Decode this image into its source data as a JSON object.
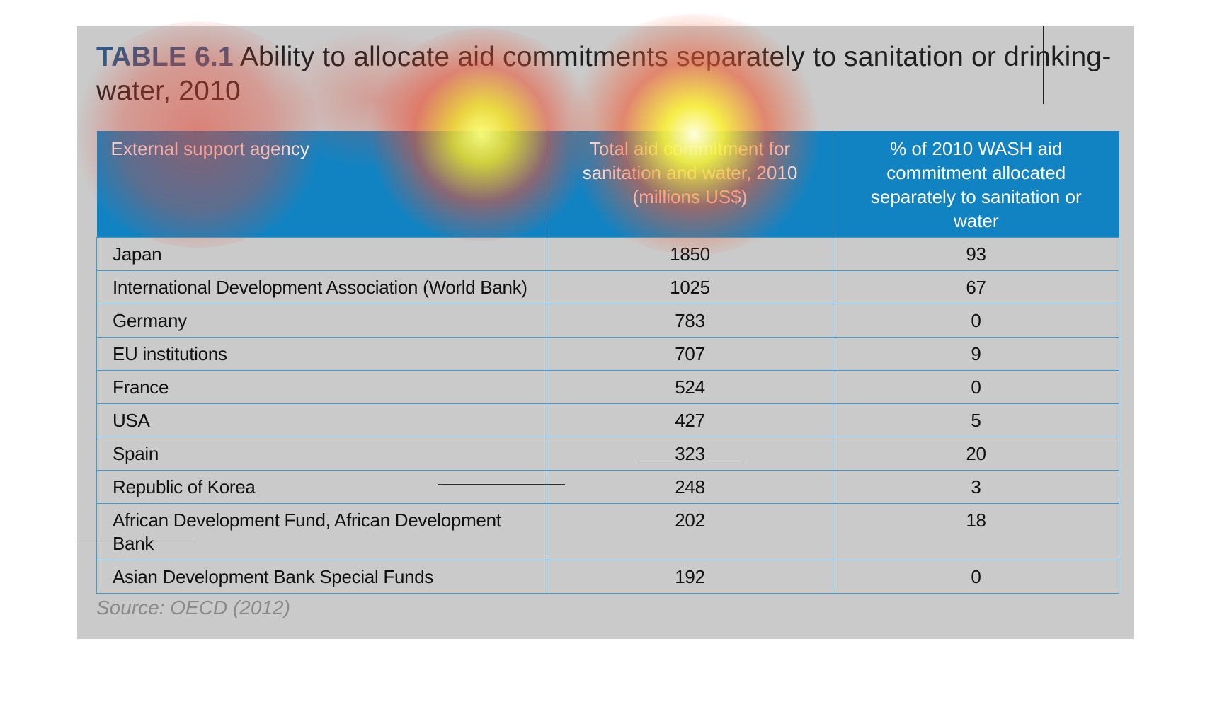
{
  "title": {
    "label": "TABLE 6.1",
    "text": "Ability to allocate aid commitments separately to sanitation or drinking-water, 2010"
  },
  "table": {
    "headers": [
      "External support agency",
      "Total aid commitment for sanitation and water, 2010 (millions US$)",
      "% of 2010 WASH aid commitment allocated separately to sanitation or water"
    ],
    "rows": [
      {
        "agency": "Japan",
        "total": "1850",
        "percent": "93"
      },
      {
        "agency": "International Development Association (World Bank)",
        "total": "1025",
        "percent": "67"
      },
      {
        "agency": "Germany",
        "total": "783",
        "percent": "0"
      },
      {
        "agency": "EU institutions",
        "total": "707",
        "percent": "9"
      },
      {
        "agency": "France",
        "total": "524",
        "percent": "0"
      },
      {
        "agency": "USA",
        "total": "427",
        "percent": "5"
      },
      {
        "agency": "Spain",
        "total": "323",
        "percent": "20"
      },
      {
        "agency": "Republic of Korea",
        "total": "248",
        "percent": "3"
      },
      {
        "agency": "African Development Fund, African Development Bank",
        "total": "202",
        "percent": "18"
      },
      {
        "agency": "Asian Development Bank Special Funds",
        "total": "192",
        "percent": "0"
      }
    ]
  },
  "source": "Source: OECD (2012)",
  "colors": {
    "panel_background": "#cacaca",
    "header_background": "#1283c2",
    "title_label": "#34577f",
    "grid_lines": "#3a9ccf",
    "source_text": "#8a8a8a"
  }
}
